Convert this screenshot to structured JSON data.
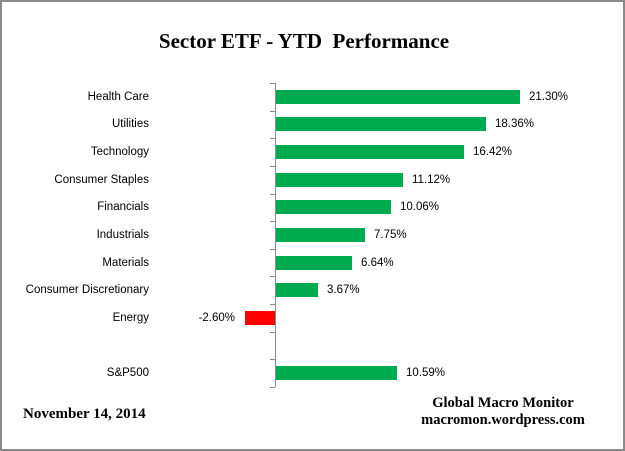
{
  "chart_data": {
    "type": "bar",
    "orientation": "horizontal",
    "title": "Sector ETF - YTD  Performance",
    "categories": [
      "Health Care",
      "Utilities",
      "Technology",
      "Consumer Staples",
      "Financials",
      "Industrials",
      "Materials",
      "Consumer Discretionary",
      "Energy",
      "S&P500"
    ],
    "values": [
      21.3,
      18.36,
      16.42,
      11.12,
      10.06,
      7.75,
      6.64,
      3.67,
      -2.6,
      10.59
    ],
    "value_labels": [
      "21.30%",
      "18.36%",
      "16.42%",
      "11.12%",
      "10.06%",
      "7.75%",
      "6.64%",
      "3.67%",
      "-2.60%",
      "10.59%"
    ],
    "unit": "%",
    "separator_after_index": 8,
    "grid": false,
    "legend": false,
    "value_axis_ticks_visible": false,
    "category_axis_side": "left"
  },
  "colors": {
    "positive_bar": "#00AB50",
    "negative_bar": "#FF0000",
    "axis": "#8C8C8C",
    "text": "#000000",
    "border": "#8A8A8A"
  },
  "footer": {
    "date": "November 14, 2014",
    "source_line1": "Global Macro Monitor",
    "source_line2": "macromon.wordpress.com"
  }
}
